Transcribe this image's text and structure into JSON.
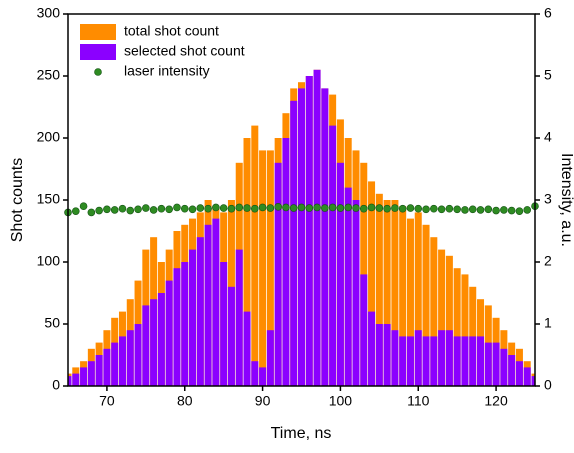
{
  "chart_data": {
    "type": "bar",
    "xlabel": "Time, ns",
    "ylabel": "Shot counts",
    "y2label": "Intensity, a.u.",
    "x": [
      65,
      66,
      67,
      68,
      69,
      70,
      71,
      72,
      73,
      74,
      75,
      76,
      77,
      78,
      79,
      80,
      81,
      82,
      83,
      84,
      85,
      86,
      87,
      88,
      89,
      90,
      91,
      92,
      93,
      94,
      95,
      96,
      97,
      98,
      99,
      100,
      101,
      102,
      103,
      104,
      105,
      106,
      107,
      108,
      109,
      110,
      111,
      112,
      113,
      114,
      115,
      116,
      117,
      118,
      119,
      120,
      121,
      122,
      123,
      124,
      125
    ],
    "series": [
      {
        "name": "total shot count",
        "type": "bar",
        "color": "#ff8c00",
        "values": [
          10,
          15,
          20,
          30,
          35,
          45,
          55,
          60,
          70,
          85,
          110,
          120,
          100,
          110,
          125,
          130,
          135,
          140,
          150,
          145,
          140,
          150,
          180,
          200,
          210,
          190,
          190,
          200,
          220,
          240,
          245,
          250,
          255,
          240,
          235,
          215,
          200,
          190,
          180,
          165,
          155,
          150,
          150,
          145,
          135,
          140,
          130,
          120,
          110,
          105,
          95,
          90,
          80,
          70,
          65,
          55,
          45,
          35,
          30,
          20,
          10
        ]
      },
      {
        "name": "selected shot count",
        "type": "bar",
        "color": "#8b00ff",
        "values": [
          8,
          10,
          15,
          20,
          25,
          30,
          35,
          40,
          45,
          50,
          65,
          70,
          75,
          85,
          95,
          100,
          110,
          120,
          130,
          135,
          100,
          80,
          110,
          60,
          20,
          15,
          45,
          180,
          200,
          230,
          240,
          250,
          255,
          240,
          210,
          180,
          160,
          150,
          90,
          60,
          50,
          50,
          45,
          40,
          40,
          45,
          40,
          40,
          45,
          45,
          40,
          40,
          40,
          40,
          35,
          35,
          30,
          25,
          20,
          15,
          8
        ]
      },
      {
        "name": "laser intensity",
        "type": "scatter",
        "axis": "y2",
        "color": "#2e8b22",
        "values": [
          2.8,
          2.82,
          2.9,
          2.8,
          2.83,
          2.85,
          2.84,
          2.86,
          2.83,
          2.85,
          2.87,
          2.84,
          2.86,
          2.85,
          2.88,
          2.86,
          2.85,
          2.87,
          2.86,
          2.88,
          2.87,
          2.86,
          2.88,
          2.87,
          2.86,
          2.88,
          2.87,
          2.89,
          2.88,
          2.87,
          2.88,
          2.87,
          2.88,
          2.87,
          2.88,
          2.87,
          2.88,
          2.87,
          2.86,
          2.88,
          2.87,
          2.86,
          2.87,
          2.86,
          2.87,
          2.86,
          2.85,
          2.86,
          2.85,
          2.86,
          2.85,
          2.84,
          2.85,
          2.84,
          2.85,
          2.83,
          2.84,
          2.83,
          2.82,
          2.84,
          2.9
        ]
      }
    ],
    "xlim": [
      65,
      125
    ],
    "xticks": [
      70,
      80,
      90,
      100,
      110,
      120
    ],
    "ylim": [
      0,
      300
    ],
    "yticks": [
      0,
      50,
      100,
      150,
      200,
      250,
      300
    ],
    "y2lim": [
      0,
      6
    ],
    "y2ticks": [
      0,
      1,
      2,
      3,
      4,
      5,
      6
    ],
    "legend": "upper left"
  }
}
